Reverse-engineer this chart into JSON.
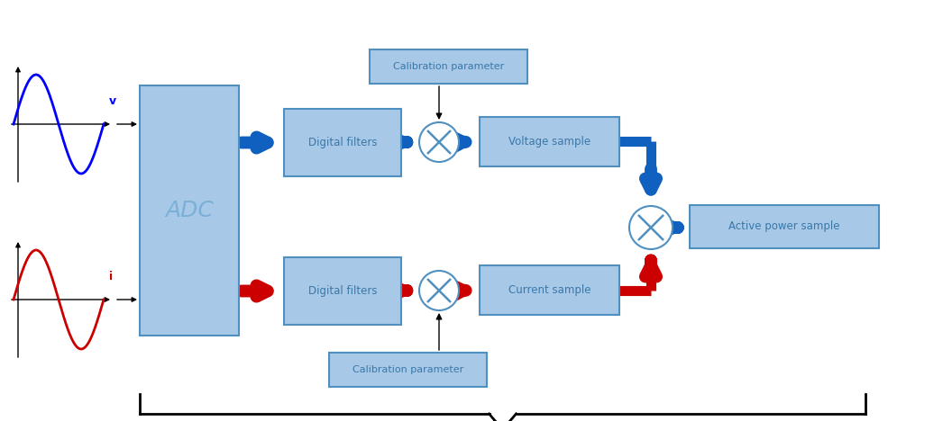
{
  "bg_color": "#ffffff",
  "light_blue_box": "#a8c8e8",
  "medium_blue_box": "#7ab0d8",
  "dark_blue_arrow": "#1060c0",
  "red_arrow": "#cc0000",
  "black": "#000000",
  "voltage_wave_color": "#0000ff",
  "current_wave_color": "#cc0000",
  "adc_label": "ADC",
  "df_label": "Digital filters",
  "vs_label": "Voltage sample",
  "cs_label": "Current sample",
  "ap_label": "Active power sample",
  "cal_label": "Calibration parameter",
  "v_label": "v",
  "i_label": "i"
}
